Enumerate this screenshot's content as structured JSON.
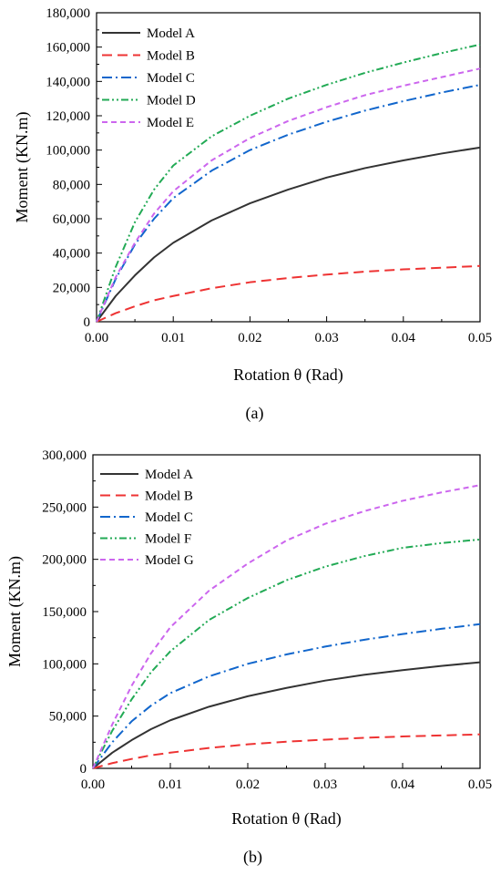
{
  "chart_data": [
    {
      "type": "line",
      "caption": "(a)",
      "xlabel": "Rotation θ (Rad)",
      "ylabel": "Moment (KN.m)",
      "xlim": [
        0,
        0.05
      ],
      "ylim": [
        0,
        180000
      ],
      "xticks": [
        0,
        0.01,
        0.02,
        0.03,
        0.04,
        0.05
      ],
      "xtick_labels": [
        "0.00",
        "0.01",
        "0.02",
        "0.03",
        "0.04",
        "0.05"
      ],
      "yticks": [
        0,
        20000,
        40000,
        60000,
        80000,
        100000,
        120000,
        140000,
        160000,
        180000
      ],
      "ytick_labels": [
        "0",
        "20,000",
        "40,000",
        "60,000",
        "80,000",
        "100,000",
        "120,000",
        "140,000",
        "160,000",
        "180,000"
      ],
      "grid": false,
      "legend_position": "top-left",
      "x": [
        0,
        0.0025,
        0.005,
        0.0075,
        0.01,
        0.015,
        0.02,
        0.025,
        0.03,
        0.035,
        0.04,
        0.045,
        0.05
      ],
      "series": [
        {
          "name": "Model A",
          "color": "#333333",
          "dash": "solid",
          "values": [
            0,
            15000,
            27000,
            37500,
            46000,
            59000,
            69000,
            77000,
            84000,
            89500,
            94000,
            98000,
            101500
          ]
        },
        {
          "name": "Model B",
          "color": "#ee3333",
          "dash": "dash",
          "values": [
            0,
            5000,
            9000,
            12500,
            15000,
            19500,
            23000,
            25500,
            27500,
            29200,
            30500,
            31500,
            32500
          ]
        },
        {
          "name": "Model C",
          "color": "#1166cc",
          "dash": "dashdot",
          "values": [
            0,
            25000,
            45000,
            60000,
            72000,
            88000,
            100000,
            109000,
            116500,
            123000,
            128500,
            133500,
            138000
          ]
        },
        {
          "name": "Model D",
          "color": "#22aa55",
          "dash": "dashdotdot",
          "values": [
            0,
            32000,
            58000,
            77000,
            91000,
            108000,
            120000,
            130000,
            138000,
            145000,
            151000,
            156500,
            161500
          ]
        },
        {
          "name": "Model E",
          "color": "#cc66ee",
          "dash": "shortdash",
          "values": [
            0,
            26000,
            46000,
            63000,
            76000,
            94000,
            107000,
            117000,
            125000,
            132000,
            137500,
            142500,
            147500
          ]
        }
      ]
    },
    {
      "type": "line",
      "caption": "(b)",
      "xlabel": "Rotation θ (Rad)",
      "ylabel": "Moment (KN.m)",
      "xlim": [
        0,
        0.05
      ],
      "ylim": [
        0,
        300000
      ],
      "xticks": [
        0,
        0.01,
        0.02,
        0.03,
        0.04,
        0.05
      ],
      "xtick_labels": [
        "0.00",
        "0.01",
        "0.02",
        "0.03",
        "0.04",
        "0.05"
      ],
      "yticks": [
        0,
        50000,
        100000,
        150000,
        200000,
        250000,
        300000
      ],
      "ytick_labels": [
        "0",
        "50,000",
        "100,000",
        "150,000",
        "200,000",
        "250,000",
        "300,000"
      ],
      "grid": false,
      "legend_position": "top-left",
      "x": [
        0,
        0.0025,
        0.005,
        0.0075,
        0.01,
        0.015,
        0.02,
        0.025,
        0.03,
        0.035,
        0.04,
        0.045,
        0.05
      ],
      "series": [
        {
          "name": "Model A",
          "color": "#333333",
          "dash": "solid",
          "values": [
            0,
            15000,
            27000,
            37500,
            46000,
            59000,
            69000,
            77000,
            84000,
            89500,
            94000,
            98000,
            101500
          ]
        },
        {
          "name": "Model B",
          "color": "#ee3333",
          "dash": "dash",
          "values": [
            0,
            5000,
            9000,
            12500,
            15000,
            19500,
            23000,
            25500,
            27500,
            29200,
            30500,
            31500,
            32500
          ]
        },
        {
          "name": "Model C",
          "color": "#1166cc",
          "dash": "dashdot",
          "values": [
            0,
            25000,
            45000,
            60000,
            72000,
            88000,
            100000,
            109000,
            116500,
            123000,
            128500,
            133500,
            138000
          ]
        },
        {
          "name": "Model F",
          "color": "#22aa55",
          "dash": "dashdotdot",
          "values": [
            0,
            36000,
            66000,
            92000,
            112000,
            142000,
            163000,
            180000,
            193000,
            203000,
            211000,
            215500,
            219000
          ]
        },
        {
          "name": "Model G",
          "color": "#cc66ee",
          "dash": "shortdash",
          "values": [
            0,
            42000,
            79000,
            110000,
            135000,
            170000,
            196000,
            218000,
            234000,
            246000,
            256000,
            264000,
            271000
          ]
        }
      ]
    }
  ]
}
